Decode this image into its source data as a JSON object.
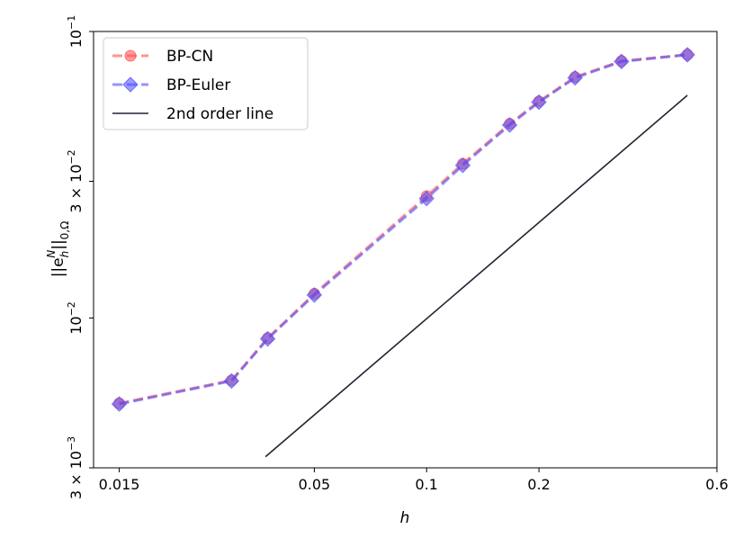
{
  "chart_data": {
    "type": "line",
    "title": "",
    "xlabel": "h",
    "ylabel": "||e_h^N||_{0,Ω}",
    "xscale": "log",
    "yscale": "log",
    "xlim": [
      0.0128,
      0.6
    ],
    "ylim": [
      0.003,
      0.1
    ],
    "xticks": [
      {
        "value": 0.015,
        "label": "0.015"
      },
      {
        "value": 0.05,
        "label": "0.05"
      },
      {
        "value": 0.1,
        "label": "0.1"
      },
      {
        "value": 0.2,
        "label": "0.2"
      },
      {
        "value": 0.6,
        "label": "0.6"
      }
    ],
    "yticks": [
      {
        "value": 0.1,
        "base": "10",
        "exp": "−1"
      },
      {
        "value": 0.03,
        "base": "3 × 10",
        "exp": "−2"
      },
      {
        "value": 0.01,
        "base": "10",
        "exp": "−2"
      },
      {
        "value": 0.003,
        "base": "3 × 10",
        "exp": "−3"
      }
    ],
    "legend_position": "top-left",
    "grid": false,
    "series": [
      {
        "name": "BP-CN",
        "color": "#ff4d4d",
        "marker": "circle",
        "linestyle": "dashed",
        "x": [
          0.015,
          0.03,
          0.0375,
          0.05,
          0.1,
          0.125,
          0.167,
          0.2,
          0.25,
          0.333,
          0.5
        ],
        "y": [
          0.00504,
          0.00606,
          0.00851,
          0.01215,
          0.02663,
          0.03454,
          0.04764,
          0.05701,
          0.06936,
          0.07889,
          0.08304
        ]
      },
      {
        "name": "BP-Euler",
        "color": "#4d4dff",
        "marker": "diamond",
        "linestyle": "dashed",
        "x": [
          0.015,
          0.03,
          0.0375,
          0.05,
          0.1,
          0.125,
          0.167,
          0.2,
          0.25,
          0.333,
          0.5
        ],
        "y": [
          0.00501,
          0.00603,
          0.00846,
          0.01203,
          0.02612,
          0.03411,
          0.04716,
          0.05668,
          0.06889,
          0.07857,
          0.08292
        ]
      },
      {
        "name": "2nd order line",
        "color": "#1f2433",
        "marker": "none",
        "linestyle": "solid",
        "x": [
          0.037,
          0.5
        ],
        "y": [
          0.00328,
          0.05988
        ]
      }
    ]
  }
}
